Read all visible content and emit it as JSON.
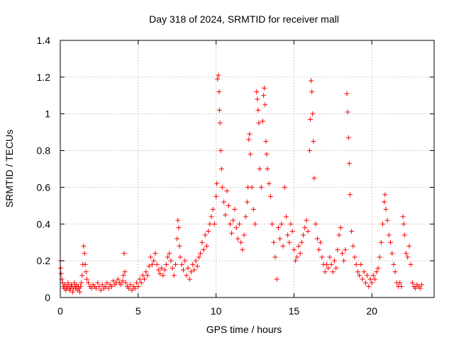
{
  "chart_data": {
    "type": "scatter",
    "title": "Day 318 of 2024, SRMTID for receiver mall",
    "xlabel": "GPS time / hours",
    "ylabel": "SRMTID / TECUs",
    "xlim": [
      0,
      24
    ],
    "ylim": [
      0,
      1.4
    ],
    "grid": true,
    "marker": "+",
    "color": "#ff0000",
    "x_ticks": [
      {
        "value": 0,
        "label": "0"
      },
      {
        "value": 5,
        "label": "5"
      },
      {
        "value": 10,
        "label": "10"
      },
      {
        "value": 15,
        "label": "15"
      },
      {
        "value": 20,
        "label": "20"
      }
    ],
    "y_ticks": [
      {
        "value": 0,
        "label": "0"
      },
      {
        "value": 0.2,
        "label": "0.2"
      },
      {
        "value": 0.4,
        "label": "0.4"
      },
      {
        "value": 0.6,
        "label": "0.6"
      },
      {
        "value": 0.8,
        "label": "0.8"
      },
      {
        "value": 1.0,
        "label": "1"
      },
      {
        "value": 1.2,
        "label": "1.2"
      },
      {
        "value": 1.4,
        "label": "1.4"
      }
    ],
    "points": [
      [
        0.0,
        0.2
      ],
      [
        0.02,
        0.16
      ],
      [
        0.05,
        0.13
      ],
      [
        0.1,
        0.1
      ],
      [
        0.15,
        0.08
      ],
      [
        0.2,
        0.06
      ],
      [
        0.25,
        0.05
      ],
      [
        0.3,
        0.07
      ],
      [
        0.35,
        0.04
      ],
      [
        0.4,
        0.06
      ],
      [
        0.45,
        0.05
      ],
      [
        0.5,
        0.08
      ],
      [
        0.55,
        0.06
      ],
      [
        0.6,
        0.04
      ],
      [
        0.65,
        0.05
      ],
      [
        0.7,
        0.07
      ],
      [
        0.75,
        0.06
      ],
      [
        0.8,
        0.03
      ],
      [
        0.85,
        0.05
      ],
      [
        0.9,
        0.08
      ],
      [
        0.95,
        0.06
      ],
      [
        1.0,
        0.05
      ],
      [
        1.05,
        0.07
      ],
      [
        1.1,
        0.04
      ],
      [
        1.15,
        0.06
      ],
      [
        1.2,
        0.05
      ],
      [
        1.25,
        0.03
      ],
      [
        1.3,
        0.06
      ],
      [
        1.35,
        0.08
      ],
      [
        1.4,
        0.12
      ],
      [
        1.45,
        0.18
      ],
      [
        1.5,
        0.28
      ],
      [
        1.55,
        0.24
      ],
      [
        1.6,
        0.18
      ],
      [
        1.65,
        0.14
      ],
      [
        1.7,
        0.1
      ],
      [
        1.8,
        0.08
      ],
      [
        1.9,
        0.06
      ],
      [
        2.0,
        0.05
      ],
      [
        2.1,
        0.07
      ],
      [
        2.2,
        0.06
      ],
      [
        2.3,
        0.05
      ],
      [
        2.4,
        0.08
      ],
      [
        2.5,
        0.06
      ],
      [
        2.6,
        0.04
      ],
      [
        2.7,
        0.07
      ],
      [
        2.8,
        0.05
      ],
      [
        2.9,
        0.06
      ],
      [
        3.0,
        0.08
      ],
      [
        3.1,
        0.05
      ],
      [
        3.2,
        0.07
      ],
      [
        3.3,
        0.06
      ],
      [
        3.4,
        0.09
      ],
      [
        3.5,
        0.07
      ],
      [
        3.6,
        0.08
      ],
      [
        3.7,
        0.1
      ],
      [
        3.8,
        0.08
      ],
      [
        3.9,
        0.07
      ],
      [
        4.0,
        0.09
      ],
      [
        4.05,
        0.12
      ],
      [
        4.1,
        0.24
      ],
      [
        4.15,
        0.14
      ],
      [
        4.2,
        0.08
      ],
      [
        4.3,
        0.06
      ],
      [
        4.4,
        0.05
      ],
      [
        4.5,
        0.07
      ],
      [
        4.6,
        0.04
      ],
      [
        4.7,
        0.06
      ],
      [
        4.8,
        0.05
      ],
      [
        4.9,
        0.08
      ],
      [
        5.0,
        0.06
      ],
      [
        5.1,
        0.1
      ],
      [
        5.2,
        0.08
      ],
      [
        5.3,
        0.12
      ],
      [
        5.4,
        0.1
      ],
      [
        5.5,
        0.14
      ],
      [
        5.6,
        0.12
      ],
      [
        5.7,
        0.17
      ],
      [
        5.8,
        0.22
      ],
      [
        5.9,
        0.18
      ],
      [
        6.0,
        0.2
      ],
      [
        6.1,
        0.24
      ],
      [
        6.2,
        0.18
      ],
      [
        6.3,
        0.15
      ],
      [
        6.4,
        0.13
      ],
      [
        6.5,
        0.16
      ],
      [
        6.6,
        0.12
      ],
      [
        6.7,
        0.15
      ],
      [
        6.8,
        0.18
      ],
      [
        6.9,
        0.22
      ],
      [
        7.0,
        0.24
      ],
      [
        7.1,
        0.2
      ],
      [
        7.2,
        0.16
      ],
      [
        7.3,
        0.12
      ],
      [
        7.4,
        0.18
      ],
      [
        7.5,
        0.32
      ],
      [
        7.55,
        0.42
      ],
      [
        7.6,
        0.38
      ],
      [
        7.65,
        0.28
      ],
      [
        7.7,
        0.22
      ],
      [
        7.8,
        0.18
      ],
      [
        7.9,
        0.15
      ],
      [
        8.0,
        0.2
      ],
      [
        8.1,
        0.12
      ],
      [
        8.2,
        0.16
      ],
      [
        8.3,
        0.1
      ],
      [
        8.4,
        0.14
      ],
      [
        8.5,
        0.18
      ],
      [
        8.6,
        0.15
      ],
      [
        8.7,
        0.2
      ],
      [
        8.8,
        0.17
      ],
      [
        8.9,
        0.22
      ],
      [
        9.0,
        0.24
      ],
      [
        9.1,
        0.3
      ],
      [
        9.2,
        0.26
      ],
      [
        9.3,
        0.34
      ],
      [
        9.4,
        0.28
      ],
      [
        9.5,
        0.36
      ],
      [
        9.6,
        0.4
      ],
      [
        9.7,
        0.44
      ],
      [
        9.8,
        0.48
      ],
      [
        9.9,
        0.4
      ],
      [
        10.0,
        0.55
      ],
      [
        10.05,
        0.62
      ],
      [
        10.1,
        1.19
      ],
      [
        10.15,
        1.21
      ],
      [
        10.2,
        1.12
      ],
      [
        10.22,
        1.02
      ],
      [
        10.25,
        0.95
      ],
      [
        10.3,
        0.8
      ],
      [
        10.35,
        0.7
      ],
      [
        10.4,
        0.6
      ],
      [
        10.5,
        0.52
      ],
      [
        10.6,
        0.45
      ],
      [
        10.7,
        0.58
      ],
      [
        10.8,
        0.5
      ],
      [
        10.9,
        0.4
      ],
      [
        11.0,
        0.35
      ],
      [
        11.1,
        0.42
      ],
      [
        11.2,
        0.48
      ],
      [
        11.3,
        0.38
      ],
      [
        11.4,
        0.32
      ],
      [
        11.5,
        0.4
      ],
      [
        11.6,
        0.3
      ],
      [
        11.7,
        0.26
      ],
      [
        11.8,
        0.34
      ],
      [
        11.9,
        0.44
      ],
      [
        12.0,
        0.52
      ],
      [
        12.05,
        0.6
      ],
      [
        12.1,
        0.86
      ],
      [
        12.15,
        0.89
      ],
      [
        12.2,
        0.78
      ],
      [
        12.3,
        0.6
      ],
      [
        12.4,
        0.48
      ],
      [
        12.5,
        0.4
      ],
      [
        12.6,
        1.12
      ],
      [
        12.65,
        1.08
      ],
      [
        12.7,
        1.02
      ],
      [
        12.75,
        0.95
      ],
      [
        12.8,
        0.7
      ],
      [
        12.9,
        0.6
      ],
      [
        13.0,
        0.96
      ],
      [
        13.05,
        1.1
      ],
      [
        13.1,
        1.14
      ],
      [
        13.15,
        1.05
      ],
      [
        13.2,
        0.85
      ],
      [
        13.25,
        0.78
      ],
      [
        13.3,
        0.7
      ],
      [
        13.4,
        0.62
      ],
      [
        13.5,
        0.55
      ],
      [
        13.6,
        0.4
      ],
      [
        13.7,
        0.3
      ],
      [
        13.8,
        0.22
      ],
      [
        13.9,
        0.1
      ],
      [
        14.0,
        0.38
      ],
      [
        14.1,
        0.32
      ],
      [
        14.2,
        0.4
      ],
      [
        14.3,
        0.28
      ],
      [
        14.4,
        0.6
      ],
      [
        14.5,
        0.44
      ],
      [
        14.6,
        0.34
      ],
      [
        14.7,
        0.3
      ],
      [
        14.8,
        0.4
      ],
      [
        14.9,
        0.36
      ],
      [
        15.0,
        0.26
      ],
      [
        15.1,
        0.2
      ],
      [
        15.2,
        0.22
      ],
      [
        15.3,
        0.28
      ],
      [
        15.4,
        0.24
      ],
      [
        15.5,
        0.3
      ],
      [
        15.6,
        0.34
      ],
      [
        15.7,
        0.38
      ],
      [
        15.8,
        0.42
      ],
      [
        15.9,
        0.36
      ],
      [
        16.0,
        0.8
      ],
      [
        16.05,
        0.97
      ],
      [
        16.1,
        1.18
      ],
      [
        16.15,
        1.12
      ],
      [
        16.2,
        1.0
      ],
      [
        16.25,
        0.85
      ],
      [
        16.3,
        0.65
      ],
      [
        16.4,
        0.4
      ],
      [
        16.5,
        0.32
      ],
      [
        16.6,
        0.26
      ],
      [
        16.7,
        0.3
      ],
      [
        16.8,
        0.22
      ],
      [
        16.9,
        0.18
      ],
      [
        17.0,
        0.14
      ],
      [
        17.1,
        0.18
      ],
      [
        17.2,
        0.16
      ],
      [
        17.3,
        0.22
      ],
      [
        17.4,
        0.18
      ],
      [
        17.5,
        0.14
      ],
      [
        17.6,
        0.2
      ],
      [
        17.7,
        0.16
      ],
      [
        17.8,
        0.26
      ],
      [
        17.9,
        0.34
      ],
      [
        18.0,
        0.38
      ],
      [
        18.1,
        0.24
      ],
      [
        18.2,
        0.2
      ],
      [
        18.3,
        0.26
      ],
      [
        18.4,
        1.11
      ],
      [
        18.45,
        1.01
      ],
      [
        18.5,
        0.87
      ],
      [
        18.55,
        0.73
      ],
      [
        18.6,
        0.56
      ],
      [
        18.7,
        0.36
      ],
      [
        18.8,
        0.28
      ],
      [
        18.9,
        0.22
      ],
      [
        19.0,
        0.18
      ],
      [
        19.1,
        0.14
      ],
      [
        19.2,
        0.12
      ],
      [
        19.3,
        0.18
      ],
      [
        19.4,
        0.1
      ],
      [
        19.5,
        0.14
      ],
      [
        19.6,
        0.08
      ],
      [
        19.7,
        0.12
      ],
      [
        19.8,
        0.06
      ],
      [
        19.9,
        0.1
      ],
      [
        20.0,
        0.08
      ],
      [
        20.1,
        0.12
      ],
      [
        20.2,
        0.1
      ],
      [
        20.3,
        0.14
      ],
      [
        20.4,
        0.16
      ],
      [
        20.5,
        0.22
      ],
      [
        20.6,
        0.3
      ],
      [
        20.7,
        0.4
      ],
      [
        20.8,
        0.52
      ],
      [
        20.85,
        0.56
      ],
      [
        20.9,
        0.48
      ],
      [
        21.0,
        0.42
      ],
      [
        21.1,
        0.34
      ],
      [
        21.2,
        0.3
      ],
      [
        21.3,
        0.24
      ],
      [
        21.4,
        0.18
      ],
      [
        21.5,
        0.14
      ],
      [
        21.6,
        0.08
      ],
      [
        21.7,
        0.06
      ],
      [
        21.8,
        0.08
      ],
      [
        21.9,
        0.06
      ],
      [
        22.0,
        0.44
      ],
      [
        22.05,
        0.4
      ],
      [
        22.1,
        0.34
      ],
      [
        22.2,
        0.24
      ],
      [
        22.3,
        0.22
      ],
      [
        22.4,
        0.28
      ],
      [
        22.5,
        0.18
      ],
      [
        22.6,
        0.08
      ],
      [
        22.7,
        0.06
      ],
      [
        22.8,
        0.05
      ],
      [
        22.9,
        0.07
      ],
      [
        23.0,
        0.06
      ],
      [
        23.1,
        0.05
      ],
      [
        23.2,
        0.07
      ]
    ]
  }
}
